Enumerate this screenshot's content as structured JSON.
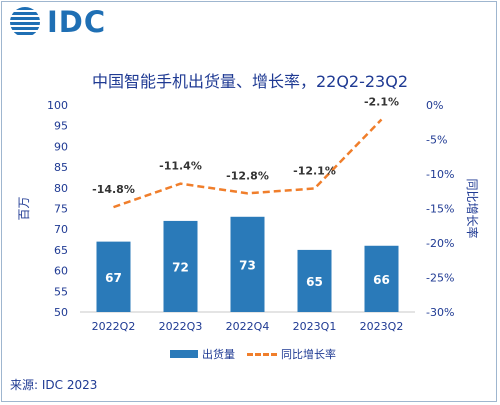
{
  "logo": {
    "text": "IDC"
  },
  "chart_data": {
    "type": "bar",
    "title": "中国智能手机出货量、增长率，22Q2-23Q2",
    "categories": [
      "2022Q2",
      "2022Q3",
      "2022Q4",
      "2023Q1",
      "2023Q2"
    ],
    "series": [
      {
        "name": "出货量",
        "type": "bar",
        "axis": "left",
        "values": [
          67,
          72,
          73,
          65,
          66
        ]
      },
      {
        "name": "同比增长率",
        "type": "line",
        "axis": "right",
        "values": [
          -14.8,
          -11.4,
          -12.8,
          -12.1,
          -2.1
        ]
      }
    ],
    "bar_labels": [
      "67",
      "72",
      "73",
      "65",
      "66"
    ],
    "line_labels": [
      "-14.8%",
      "-11.4%",
      "-12.8%",
      "-12.1%",
      "-2.1%"
    ],
    "ylabel": "百万",
    "y2label": "同比增长率",
    "ylim": [
      50,
      100
    ],
    "y2lim": [
      -30,
      0
    ],
    "yticks": [
      "50",
      "55",
      "60",
      "65",
      "70",
      "75",
      "80",
      "85",
      "90",
      "95",
      "100"
    ],
    "y2ticks": [
      "-30%",
      "-25%",
      "-20%",
      "-15%",
      "-10%",
      "-5%",
      "0%"
    ],
    "grid": false,
    "legend_position": "bottom",
    "colors": {
      "bar": "#2a7ab9",
      "line": "#f07e2b",
      "text": "#1f3a93"
    }
  },
  "source": "来源: IDC 2023"
}
